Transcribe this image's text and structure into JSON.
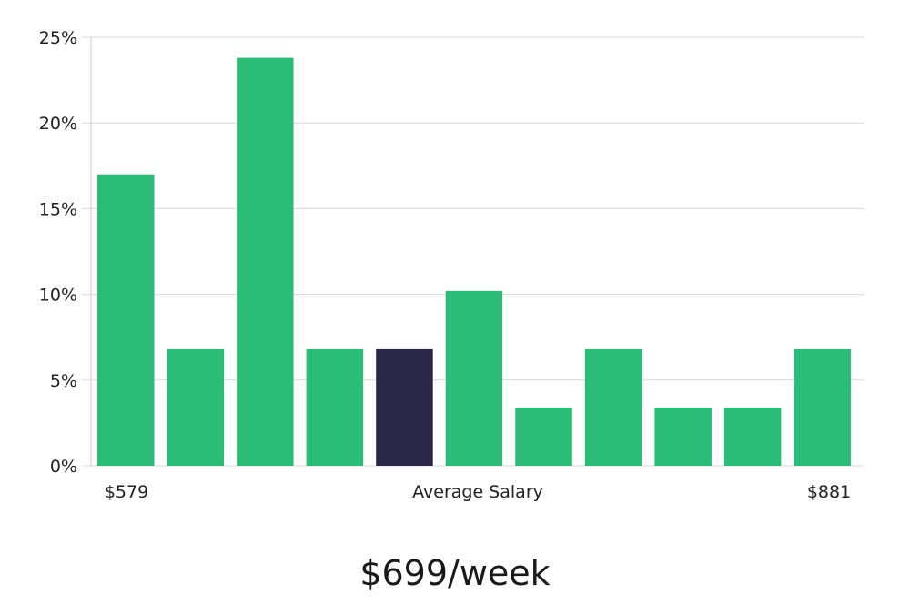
{
  "chart_data": {
    "type": "bar",
    "values": [
      17.0,
      6.8,
      23.8,
      6.8,
      6.8,
      10.2,
      3.4,
      6.8,
      3.4,
      3.4,
      6.8
    ],
    "highlight_index": 4,
    "ylim": [
      0,
      25
    ],
    "y_ticks": [
      0,
      5,
      10,
      15,
      20,
      25
    ],
    "y_tick_labels": [
      "0%",
      "5%",
      "10%",
      "15%",
      "20%",
      "25%"
    ],
    "x_min_label": "$579",
    "x_center_label": "Average Salary",
    "x_max_label": "$881",
    "grid": true,
    "colors": {
      "bar": "#2bbd77",
      "highlight": "#2a2645",
      "grid": "#d9d9d9",
      "axis": "#cccccc"
    }
  },
  "headline": "$699/week"
}
